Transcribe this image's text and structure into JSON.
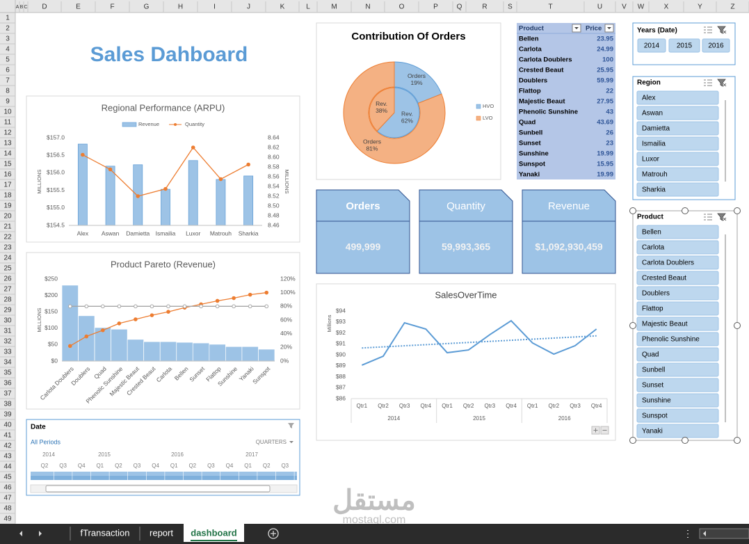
{
  "column_letters": [
    "A",
    "B",
    "C",
    "D",
    "E",
    "F",
    "G",
    "H",
    "I",
    "J",
    "K",
    "L",
    "M",
    "N",
    "O",
    "P",
    "Q",
    "R",
    "S",
    "T",
    "U",
    "V",
    "W",
    "X",
    "Y",
    "Z"
  ],
  "row_numbers": [
    1,
    2,
    3,
    4,
    5,
    6,
    7,
    8,
    9,
    10,
    11,
    12,
    13,
    14,
    15,
    16,
    17,
    18,
    19,
    20,
    21,
    22,
    23,
    24,
    25,
    26,
    27,
    28,
    29,
    30,
    31,
    32,
    33,
    34,
    35,
    36,
    37,
    38,
    39,
    40,
    41,
    42,
    43,
    44,
    45,
    46,
    47,
    48,
    49
  ],
  "title": "Sales Dahboard",
  "chart_data": [
    {
      "type": "bar_line",
      "title": "Regional Performance (ARPU)",
      "categories": [
        "Alex",
        "Aswan",
        "Damietta",
        "Ismailia",
        "Luxor",
        "Matrouh",
        "Sharkia"
      ],
      "series": [
        {
          "name": "Revenue",
          "type": "bar",
          "color": "#9dc3e6",
          "values": [
            156.82,
            156.19,
            156.23,
            155.53,
            156.35,
            155.81,
            155.91
          ]
        },
        {
          "name": "Quantity",
          "type": "line",
          "color": "#ed7d31",
          "marker": "filled",
          "axis": "y2",
          "values": [
            8.605,
            8.575,
            8.52,
            8.535,
            8.62,
            8.555,
            8.585
          ]
        }
      ],
      "ylabel": "MILLIONS",
      "y2label": "MILLIONS",
      "ylim": [
        154.5,
        157
      ],
      "yticks": [
        {
          "value": 154.5,
          "label": "$154.5"
        },
        {
          "value": 155,
          "label": "$155.0"
        },
        {
          "value": 155.5,
          "label": "$155.5"
        },
        {
          "value": 156,
          "label": "$156.0"
        },
        {
          "value": 156.5,
          "label": "$156.5"
        },
        {
          "value": 157,
          "label": "$157.0"
        }
      ],
      "y2lim": [
        8.46,
        8.64
      ],
      "y2ticks": [
        8.46,
        8.48,
        {
          "value": 8.5,
          "label": "8.50"
        },
        8.52,
        8.54,
        8.56,
        8.58,
        {
          "value": 8.6,
          "label": "8.60"
        },
        8.62,
        8.64
      ],
      "legend": "top"
    },
    {
      "type": "bar_line",
      "title": "Product Pareto (Revenue)",
      "categories": [
        "Carlota Doublers",
        "Doublers",
        "Quad",
        "Phenolic Sunshine",
        "Majestic Beaut",
        "Crested Beaut",
        "Carlota",
        "Bellen",
        "Sunset",
        "Flattop",
        "Sunshine",
        "Yanaki",
        "Sunspot"
      ],
      "series": [
        {
          "type": "bar",
          "color": "#9dc3e6",
          "values": [
            231,
            138,
            102,
            97,
            66,
            59,
            59,
            57,
            55,
            51,
            44,
            44,
            36
          ]
        },
        {
          "type": "line",
          "color": "#ed7d31",
          "marker": "filled",
          "axis": "y2",
          "values": [
            22,
            36,
            45,
            55,
            61,
            67,
            72,
            78,
            83,
            88,
            92,
            97,
            100
          ]
        },
        {
          "type": "line",
          "color": "#a5a5a5",
          "marker": "open",
          "axis": "y2",
          "values": [
            80,
            80,
            80,
            80,
            80,
            80,
            80,
            80,
            80,
            80,
            80,
            80,
            80
          ]
        }
      ],
      "ylabel": "MILLIONS",
      "ylim": [
        0,
        250
      ],
      "yticks": [
        {
          "value": 0,
          "label": "$0"
        },
        {
          "value": 50,
          "label": "$50"
        },
        {
          "value": 100,
          "label": "$100"
        },
        {
          "value": 150,
          "label": "$150"
        },
        {
          "value": 200,
          "label": "$200"
        },
        {
          "value": 250,
          "label": "$250"
        }
      ],
      "y2lim": [
        0,
        120
      ],
      "y2ticks": [
        {
          "value": 0,
          "label": "0%"
        },
        {
          "value": 20,
          "label": "20%"
        },
        {
          "value": 40,
          "label": "40%"
        },
        {
          "value": 60,
          "label": "60%"
        },
        {
          "value": 80,
          "label": "80%"
        },
        {
          "value": 100,
          "label": "100%"
        },
        {
          "value": 120,
          "label": "120%"
        }
      ]
    },
    {
      "type": "doughnut",
      "title": "Contribution Of Orders",
      "categories": [
        "HVO",
        "LVO"
      ],
      "colors": [
        "#9dc3e6",
        "#f4b183"
      ],
      "series": [
        {
          "name": "Orders",
          "values": [
            19,
            81
          ],
          "value_labels": [
            "19%",
            "81%"
          ]
        },
        {
          "name": "Rev.",
          "values": [
            62,
            38
          ],
          "value_labels": [
            "62%",
            "38%"
          ]
        }
      ],
      "legend": "right"
    },
    {
      "type": "line",
      "title": "SalesOverTime",
      "categories": [
        "Qtr1",
        "Qtr2",
        "Qtr3",
        "Qtr4",
        "Qtr1",
        "Qtr2",
        "Qtr3",
        "Qtr4",
        "Qtr1",
        "Qtr2",
        "Qtr3",
        "Qtr4"
      ],
      "category_groups": [
        "2014",
        "2015",
        "2016"
      ],
      "series": [
        {
          "color": "#5b9bd5",
          "values": [
            89.05,
            89.87,
            92.92,
            92.35,
            90.19,
            90.44,
            91.84,
            93.11,
            91.08,
            90.06,
            90.83,
            92.35
          ],
          "trendline": true
        }
      ],
      "ylabel": "Millions",
      "ylim": [
        86,
        94
      ],
      "yticks": [
        {
          "value": 86,
          "label": "$86"
        },
        {
          "value": 87,
          "label": "$87"
        },
        {
          "value": 88,
          "label": "$88"
        },
        {
          "value": 89,
          "label": "$89"
        },
        {
          "value": 90,
          "label": "$90"
        },
        {
          "value": 91,
          "label": "$91"
        },
        {
          "value": 92,
          "label": "$92"
        },
        {
          "value": 93,
          "label": "$93"
        },
        {
          "value": 94,
          "label": "$94"
        }
      ]
    }
  ],
  "price_table": {
    "headers": [
      "Product",
      "Price"
    ],
    "rows": [
      [
        "Bellen",
        23.95
      ],
      [
        "Carlota",
        24.99
      ],
      [
        "Carlota Doublers",
        100
      ],
      [
        "Crested Beaut",
        25.95
      ],
      [
        "Doublers",
        59.99
      ],
      [
        "Flattop",
        22
      ],
      [
        "Majestic Beaut",
        27.95
      ],
      [
        "Phenolic Sunshine",
        43
      ],
      [
        "Quad",
        43.69
      ],
      [
        "Sunbell",
        26
      ],
      [
        "Sunset",
        23
      ],
      [
        "Sunshine",
        19.99
      ],
      [
        "Sunspot",
        15.95
      ],
      [
        "Yanaki",
        19.99
      ]
    ]
  },
  "kpis": [
    {
      "label": "Orders",
      "value": "499,999"
    },
    {
      "label": "Quantity",
      "value": "59,993,365"
    },
    {
      "label": "Revenue",
      "value": "$1,092,930,459"
    }
  ],
  "slicers": [
    {
      "title": "Years (Date)",
      "items": [
        "2014",
        "2015",
        "2016"
      ]
    },
    {
      "title": "Region",
      "items": [
        "Alex",
        "Aswan",
        "Damietta",
        "Ismailia",
        "Luxor",
        "Matrouh",
        "Sharkia"
      ]
    },
    {
      "title": "Product",
      "items": [
        "Bellen",
        "Carlota",
        "Carlota Doublers",
        "Crested Beaut",
        "Doublers",
        "Flattop",
        "Majestic Beaut",
        "Phenolic Sunshine",
        "Quad",
        "Sunbell",
        "Sunset",
        "Sunshine",
        "Sunspot",
        "Yanaki"
      ]
    }
  ],
  "timeline": {
    "title": "Date",
    "selection": "All Periods",
    "level": "QUARTERS",
    "years": [
      "2014",
      "2015",
      "2016",
      "2017"
    ],
    "periods": [
      "Q2",
      "Q3",
      "Q4",
      "Q1",
      "Q2",
      "Q3",
      "Q4",
      "Q1",
      "Q2",
      "Q3",
      "Q4",
      "Q1",
      "Q2",
      "Q3"
    ]
  },
  "sheet_tabs": [
    "fTransaction",
    "report",
    "dashboard"
  ],
  "active_tab": 2,
  "watermark": {
    "arabic": "مستقل",
    "latin": "mostaql.com"
  }
}
